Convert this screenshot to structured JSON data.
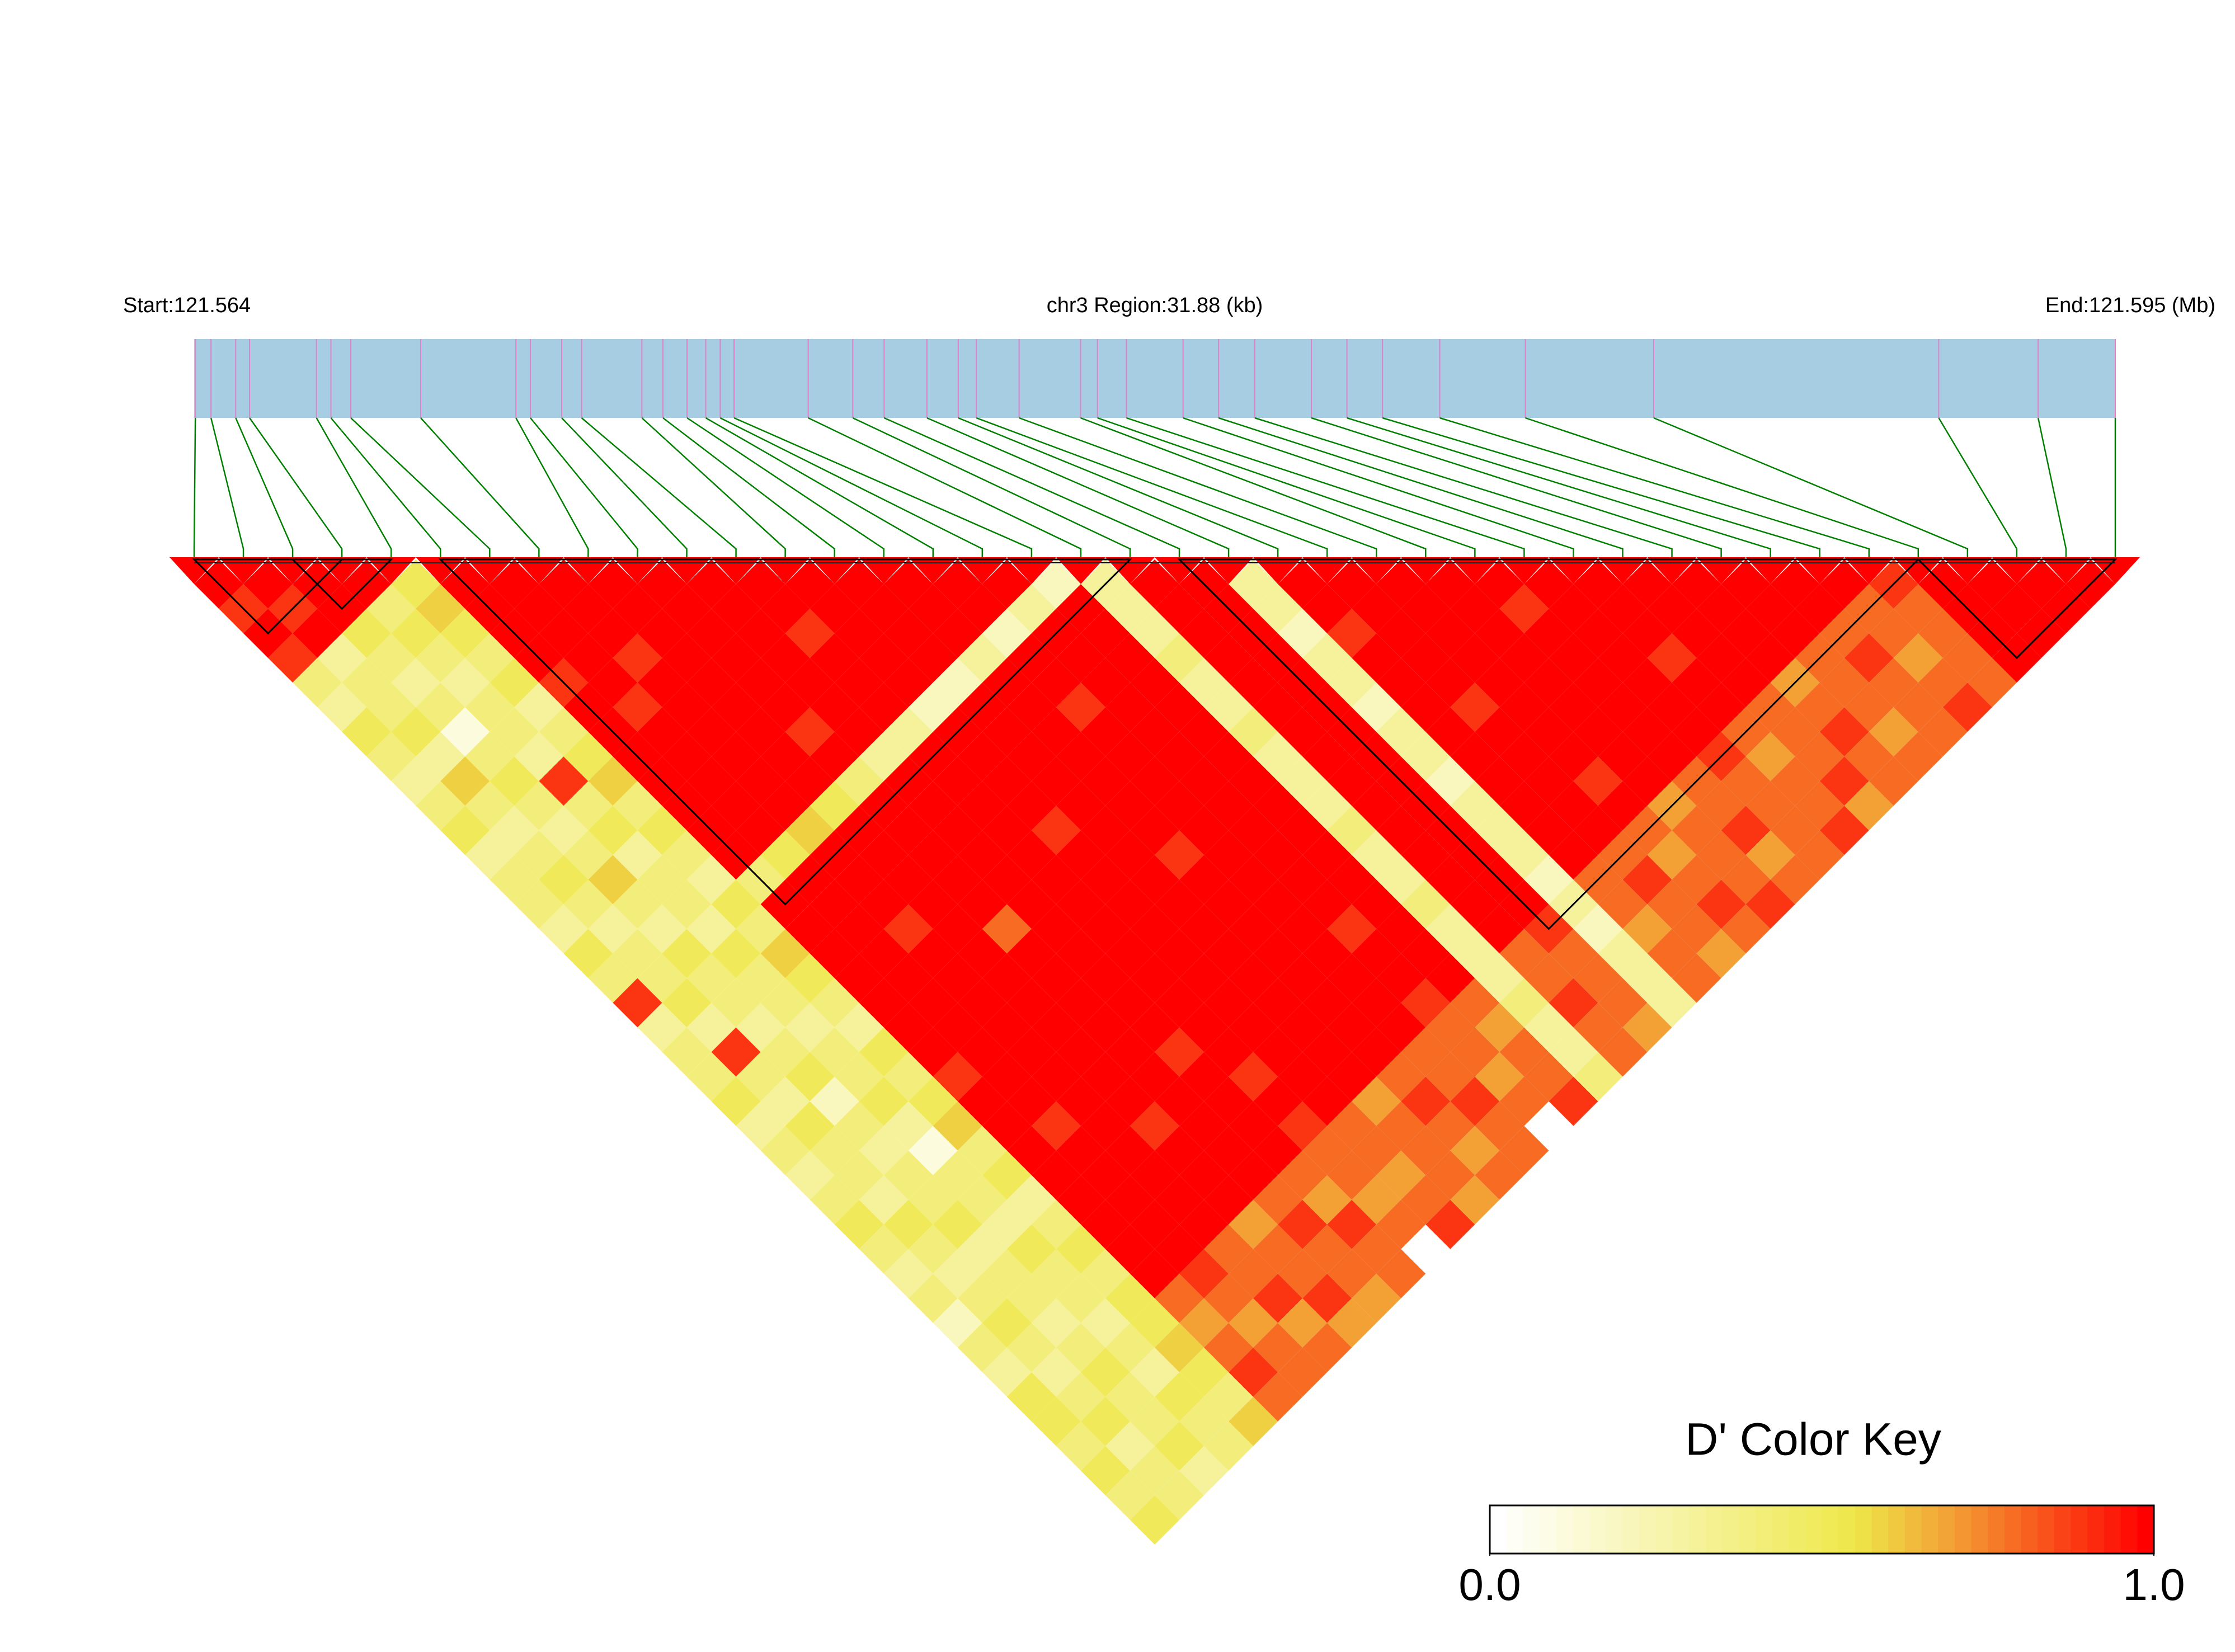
{
  "chart_data": {
    "type": "ld_heatmap",
    "start_label": "Start:121.564",
    "region_label": "chr3 Region:31.88 (kb)",
    "end_label": "End:121.595 (Mb)",
    "xlim": [
      0,
      31.88
    ],
    "positions": [
      0.02,
      0.28,
      0.69,
      0.92,
      2.03,
      2.27,
      2.6,
      3.76,
      5.34,
      5.58,
      6.1,
      6.43,
      7.43,
      7.78,
      8.18,
      8.49,
      8.73,
      8.96,
      10.19,
      10.93,
      11.45,
      12.16,
      12.68,
      12.98,
      13.69,
      14.71,
      14.99,
      15.47,
      16.41,
      17.0,
      17.6,
      18.54,
      19.13,
      19.72,
      20.67,
      22.09,
      24.22,
      28.95,
      30.6,
      31.88
    ],
    "dprime": [
      [
        1,
        0.9,
        1,
        0.9,
        0.4,
        0.3,
        0.5,
        0.4,
        0.3,
        0.4,
        0.5,
        0.3,
        0.4,
        0.4,
        0.3,
        0.5,
        0.4,
        0.9,
        0.3,
        0.4,
        0.4,
        0.5,
        0.3,
        0.4,
        0.3,
        0.4,
        0.5,
        0.4,
        0.3,
        0.4,
        0.2,
        0.4,
        0.3,
        0.5,
        0.5,
        0.4,
        0.5,
        0.4,
        0.5
      ],
      [
        1,
        0.9,
        1,
        0.3,
        0.4,
        0.4,
        0.5,
        0.3,
        0.6,
        0.4,
        0.3,
        0.4,
        0.5,
        0.4,
        0.3,
        0.4,
        0.4,
        0.5,
        0.3,
        0.9,
        0.4,
        0.3,
        0.5,
        0.4,
        0.4,
        0.3,
        0.5,
        0.4,
        0.3,
        0.4,
        0.5,
        0.4,
        0.3,
        0.4,
        0.5,
        0.3,
        0.4,
        0.4
      ],
      [
        1,
        1,
        0.5,
        0.4,
        0.3,
        0.4,
        0.1,
        0.4,
        0.5,
        0.4,
        0.3,
        0.4,
        0.6,
        0.4,
        0.3,
        0.5,
        0.4,
        0.4,
        0.3,
        0.4,
        0.5,
        0.2,
        0.4,
        0.3,
        0.4,
        0.4,
        0.5,
        0.3,
        0.4,
        0.4,
        0.3,
        0.4,
        0.5,
        0.4,
        0.4,
        0.5,
        0.3
      ],
      [
        1,
        0.4,
        0.5,
        0.4,
        0.3,
        0.4,
        0.4,
        0.3,
        0.9,
        0.4,
        0.5,
        0.3,
        0.4,
        0.4,
        0.3,
        0.5,
        0.4,
        0.4,
        0.3,
        0.4,
        0.4,
        0.5,
        0.3,
        0.1,
        0.4,
        0.4,
        0.3,
        0.5,
        0.4,
        0.4,
        0.3,
        0.4,
        0.3,
        0.5,
        0.4,
        0.4
      ],
      [
        0.5,
        0.6,
        0.5,
        0.4,
        0.5,
        0.3,
        0.4,
        0.5,
        0.6,
        0.4,
        0.5,
        0.4,
        0.3,
        0.5,
        0.4,
        0.6,
        0.5,
        0.4,
        0.3,
        0.5,
        0.4,
        0.5,
        0.6,
        0.4,
        0.5,
        0.3,
        0.4,
        0.5,
        0.4,
        0.5,
        0.5,
        0.6,
        0.5,
        0.4,
        0.6
      ],
      [
        1,
        1,
        1,
        1,
        0.9,
        1,
        1,
        1,
        1,
        1,
        1,
        1,
        0.4,
        1,
        1,
        1,
        1,
        1,
        1,
        1,
        0.9,
        1,
        1,
        1,
        1,
        1,
        1,
        1,
        1,
        0.8,
        0.7,
        0.8,
        0.9,
        0.8
      ],
      [
        1,
        1,
        1,
        1,
        1,
        0.9,
        1,
        1,
        1,
        1,
        1,
        0.5,
        1,
        1,
        1,
        1,
        1,
        1,
        1,
        1,
        1,
        1,
        0.9,
        1,
        1,
        1,
        1,
        1,
        0.9,
        0.8,
        0.7,
        0.8,
        0.8
      ],
      [
        1,
        1,
        1,
        0.9,
        1,
        1,
        1,
        1,
        1,
        1,
        0.6,
        1,
        1,
        1,
        0.9,
        1,
        1,
        1,
        1,
        1,
        1,
        1,
        1,
        1,
        1,
        1,
        1,
        0.8,
        0.8,
        0.9,
        0.7,
        0.8
      ],
      [
        1,
        1,
        1,
        1,
        1,
        1,
        1,
        1,
        1,
        0.5,
        1,
        1,
        1,
        1,
        1,
        1,
        1,
        1,
        1,
        1,
        1,
        1,
        0.9,
        1,
        1,
        1,
        0.7,
        0.8,
        0.8,
        0.9,
        0.7
      ],
      [
        1,
        1,
        1,
        1,
        1,
        1,
        0.9,
        1,
        0.4,
        1,
        1,
        1,
        1,
        1,
        0.8,
        1,
        1,
        1,
        1,
        1,
        1,
        1,
        1,
        1,
        1,
        0.8,
        0.9,
        0.8,
        0.8,
        0.7
      ],
      [
        1,
        1,
        1,
        1,
        1,
        1,
        1,
        0.3,
        1,
        1,
        1,
        1,
        1,
        1,
        1,
        1,
        1,
        1,
        1,
        0.9,
        1,
        1,
        1,
        1,
        0.8,
        0.7,
        0.9,
        0.8,
        0.8
      ],
      [
        1,
        1,
        0.9,
        1,
        1,
        1,
        0.3,
        1,
        1,
        1,
        1,
        1,
        1,
        1,
        1,
        1,
        1,
        1,
        1,
        1,
        0.9,
        1,
        0.9,
        0.8,
        0.8,
        0.7,
        0.8
      ],
      [
        1,
        1,
        1,
        1,
        1,
        0.2,
        1,
        1,
        1,
        1,
        0.9,
        1,
        1,
        1,
        1,
        1,
        1,
        1,
        1,
        1,
        1,
        1,
        0.8,
        0.8,
        0.7,
        0.8,
        0.9
      ],
      [
        1,
        1,
        1,
        1,
        0.2,
        1,
        1,
        1,
        1,
        1,
        1,
        1,
        1,
        1,
        1,
        1,
        1,
        1,
        1,
        1,
        1,
        0.7,
        0.8,
        0.8,
        0.8,
        0.7
      ],
      [
        1,
        1,
        1,
        0.3,
        1,
        1,
        1,
        1,
        1,
        1,
        1,
        0.9,
        1,
        1,
        1,
        1,
        1,
        1,
        1,
        1,
        0.8,
        0.9,
        0.8,
        0.7,
        0.8
      ],
      [
        1,
        1,
        0.2,
        1,
        1,
        0.9,
        1,
        1,
        1,
        1,
        1,
        1,
        1,
        1,
        1,
        1,
        1,
        1,
        1,
        0.8,
        0.8,
        0.9,
        0.8,
        0.8
      ],
      [
        1,
        0.3,
        1,
        1,
        1,
        1,
        1,
        1,
        1,
        1,
        1,
        1,
        1,
        1,
        0.9,
        1,
        1,
        0.9,
        0.8,
        0.8,
        0.7,
        0.8
      ],
      [
        0.2,
        1,
        1,
        1,
        1,
        1,
        1,
        1,
        1,
        1,
        1,
        1,
        1,
        1,
        1,
        1,
        1,
        0.8,
        0.7,
        0.8,
        0.8,
        0.9
      ],
      [
        0.3,
        0.3,
        0.3,
        0.4,
        0.3,
        0.3,
        0.4,
        0.3,
        0.3,
        0.3,
        0.4,
        0.3,
        0.3,
        0.4,
        0.3,
        0.3,
        0.3,
        0.4,
        0.3,
        0.3,
        0.4
      ],
      [
        1,
        1,
        1,
        1,
        1,
        1,
        1,
        1,
        1,
        1,
        1,
        1,
        1,
        1,
        1,
        0.8,
        0.8,
        0.9,
        0.8,
        0.8
      ],
      [
        1,
        1,
        1,
        1,
        1,
        1,
        1,
        1,
        1,
        1,
        1,
        1,
        1,
        1,
        0.9,
        0.8,
        0.8,
        0.8,
        0.7
      ],
      [
        0.3,
        0.3,
        0.2,
        0.3,
        0.3,
        0.2,
        0.3,
        0.3,
        0.2,
        0.3,
        0.3,
        0.3,
        0.2,
        0.3,
        0.2,
        0.3,
        0.3,
        0.3
      ],
      [
        1,
        1,
        0.9,
        1,
        1,
        1,
        1,
        1,
        1,
        1,
        1,
        1,
        0.8,
        0.8,
        0.7,
        0.8,
        0.8
      ],
      [
        1,
        1,
        1,
        1,
        1,
        0.9,
        1,
        1,
        1,
        1,
        1,
        0.8,
        0.9,
        0.8,
        0.8,
        0.7
      ],
      [
        1,
        1,
        1,
        1,
        1,
        1,
        1,
        1,
        0.9,
        1,
        0.8,
        0.7,
        0.8,
        0.9,
        0.8
      ],
      [
        1,
        1,
        1,
        1,
        1,
        1,
        1,
        1,
        1,
        0.7,
        0.8,
        0.8,
        0.8,
        0.9
      ],
      [
        1,
        0.9,
        1,
        1,
        1,
        1,
        1,
        1,
        0.8,
        0.8,
        0.9,
        0.7,
        0.8
      ],
      [
        1,
        1,
        1,
        1,
        1,
        1,
        1,
        0.9,
        0.8,
        0.8,
        0.8,
        0.8
      ],
      [
        1,
        1,
        1,
        0.9,
        1,
        1,
        0.8,
        0.7,
        0.8,
        0.8,
        0.9
      ],
      [
        1,
        1,
        1,
        1,
        1,
        0.8,
        0.8,
        0.8,
        0.9,
        0.7
      ],
      [
        1,
        1,
        1,
        1,
        0.7,
        0.8,
        0.9,
        0.8,
        0.8
      ],
      [
        1,
        1,
        1,
        0.8,
        0.8,
        0.8,
        0.7,
        0.8
      ],
      [
        1,
        1,
        0.8,
        0.9,
        0.8,
        0.8,
        0.8
      ],
      [
        1,
        0.8,
        0.8,
        0.7,
        0.8,
        0.9
      ],
      [
        0.9,
        0.8,
        0.8,
        0.8,
        0.8
      ],
      [
        1,
        1,
        1,
        1
      ],
      [
        1,
        1,
        1
      ],
      [
        1,
        1
      ],
      [
        1
      ]
    ],
    "blocks": [
      [
        0,
        3
      ],
      [
        2,
        4
      ],
      [
        5,
        19
      ],
      [
        20,
        35
      ],
      [
        35,
        39
      ]
    ],
    "bar_color": "#a6cde2",
    "position_line_color": "#e080c8",
    "connector_color": "#008000",
    "color_stops": [
      [
        0,
        "#ffffff"
      ],
      [
        0.55,
        "#eee84a"
      ],
      [
        0.7,
        "#f3a035"
      ],
      [
        1,
        "#ff0000"
      ]
    ],
    "key_title": "D' Color Key",
    "key_ticks": [
      {
        "value": 0,
        "label": "0.0"
      },
      {
        "value": 1,
        "label": "1.0"
      }
    ]
  }
}
